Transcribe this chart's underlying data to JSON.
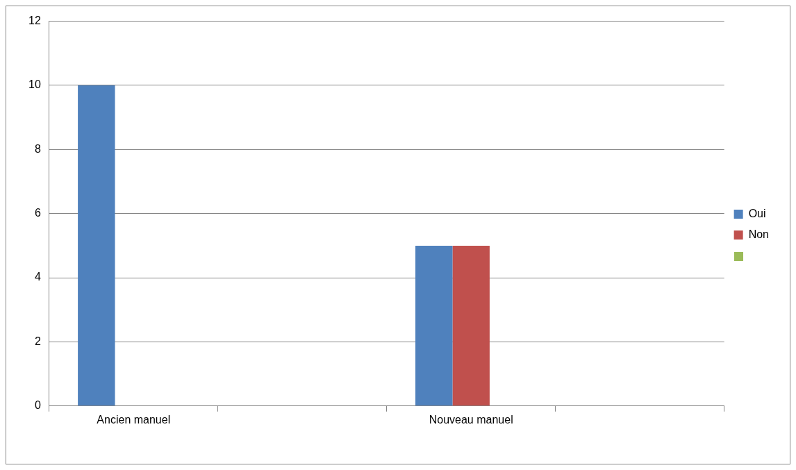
{
  "chart_data": {
    "type": "bar",
    "categories": [
      "Ancien manuel",
      null,
      "Nouveau manuel",
      null
    ],
    "series": [
      {
        "name": "Oui",
        "color": "#4f81bd",
        "values": [
          10,
          null,
          5,
          null
        ]
      },
      {
        "name": "Non",
        "color": "#c0504d",
        "values": [
          null,
          null,
          5,
          null
        ]
      },
      {
        "color": "#9bbb59",
        "values": [
          null,
          null,
          null,
          null
        ]
      }
    ],
    "ylim": [
      0,
      12
    ],
    "yticks": [
      0,
      2,
      4,
      6,
      8,
      10,
      12
    ],
    "grid": "y",
    "legend": "right"
  }
}
